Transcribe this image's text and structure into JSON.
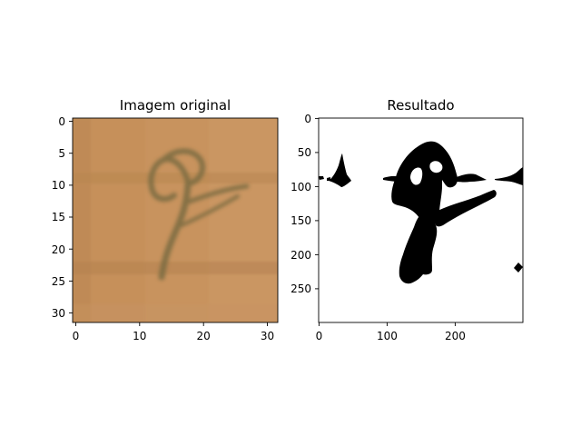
{
  "panels": [
    {
      "title": "Imagem original",
      "x_ticks": [
        "0",
        "10",
        "20",
        "30"
      ],
      "y_ticks": [
        "0",
        "5",
        "10",
        "15",
        "20",
        "25",
        "30"
      ],
      "image_description": "handwritten-digit-on-paper"
    },
    {
      "title": "Resultado",
      "x_ticks": [
        "0",
        "100",
        "200"
      ],
      "y_ticks": [
        "0",
        "50",
        "100",
        "150",
        "200",
        "250"
      ],
      "image_description": "binarized-digit-mask"
    }
  ],
  "colors": {
    "paper": "#c8935e",
    "ink": "#7a6a3e",
    "mask": "#000000",
    "background": "#ffffff"
  }
}
